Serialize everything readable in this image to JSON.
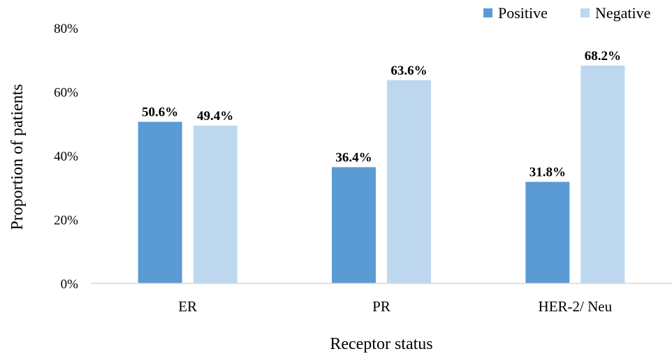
{
  "chart_data": {
    "type": "bar",
    "title": "",
    "xlabel": "Receptor status",
    "ylabel": "Proportion of patients",
    "categories": [
      "ER",
      "PR",
      "HER-2/ Neu"
    ],
    "series": [
      {
        "name": "Positive",
        "values": [
          50.6,
          36.4,
          31.8
        ],
        "color": "#5b9bd5"
      },
      {
        "name": "Negative",
        "values": [
          49.4,
          63.6,
          68.2
        ],
        "color": "#bdd7ee"
      }
    ],
    "ylim": [
      0,
      80
    ],
    "yticks": [
      "0%",
      "20%",
      "40%",
      "60%",
      "80%"
    ],
    "data_labels": [
      [
        "50.6%",
        "36.4%",
        "31.8%"
      ],
      [
        "49.4%",
        "63.6%",
        "68.2%"
      ]
    ],
    "legend": "top-right",
    "grid": false
  }
}
